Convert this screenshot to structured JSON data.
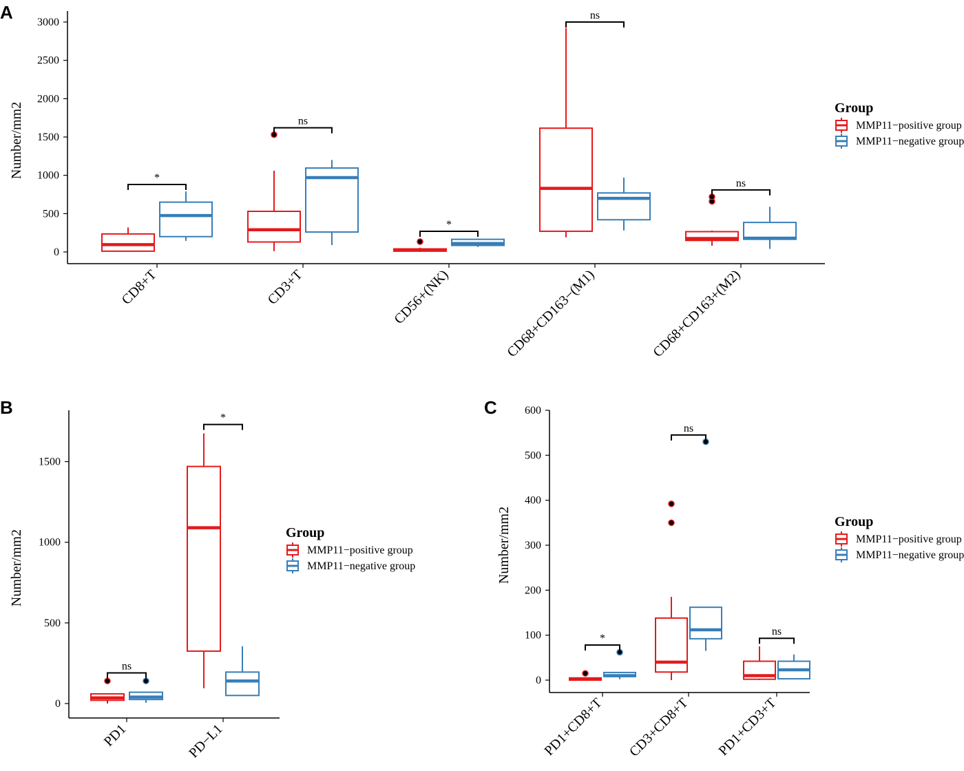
{
  "colors": {
    "positive": "#e41a1c",
    "negative": "#377eb8",
    "axis": "#000000"
  },
  "chart_data": [
    {
      "panel": "A",
      "type": "boxplot",
      "ylabel": "Number/mm2",
      "ylim": [
        0,
        3000
      ],
      "yticks": [
        0,
        500,
        1000,
        1500,
        2000,
        2500,
        3000
      ],
      "categories": [
        "CD8+T",
        "CD3+T",
        "CD56+(NK)",
        "CD68+CD163−(M1)",
        "CD68+CD163+(M2)"
      ],
      "legend": {
        "title": "Group",
        "items": [
          "MMP11−positive group",
          "MMP11−negative group"
        ]
      },
      "series": [
        {
          "name": "MMP11−positive group",
          "boxes": [
            {
              "min": 0,
              "q1": 10,
              "median": 95,
              "q3": 235,
              "max": 320,
              "outliers": []
            },
            {
              "min": 10,
              "q1": 130,
              "median": 290,
              "q3": 530,
              "max": 1060,
              "outliers": [
                1530
              ]
            },
            {
              "min": 0,
              "q1": 10,
              "median": 25,
              "q3": 40,
              "max": 55,
              "outliers": [
                135
              ]
            },
            {
              "min": 190,
              "q1": 270,
              "median": 830,
              "q3": 1615,
              "max": 2920,
              "outliers": []
            },
            {
              "min": 80,
              "q1": 150,
              "median": 175,
              "q3": 265,
              "max": 280,
              "outliers": [
                660,
                720
              ]
            }
          ]
        },
        {
          "name": "MMP11−negative group",
          "boxes": [
            {
              "min": 145,
              "q1": 200,
              "median": 475,
              "q3": 650,
              "max": 790,
              "outliers": []
            },
            {
              "min": 90,
              "q1": 260,
              "median": 970,
              "q3": 1095,
              "max": 1200,
              "outliers": []
            },
            {
              "min": 65,
              "q1": 85,
              "median": 110,
              "q3": 165,
              "max": 175,
              "outliers": []
            },
            {
              "min": 280,
              "q1": 420,
              "median": 700,
              "q3": 770,
              "max": 970,
              "outliers": []
            },
            {
              "min": 40,
              "q1": 165,
              "median": 180,
              "q3": 385,
              "max": 590,
              "outliers": []
            }
          ]
        }
      ],
      "significance": [
        {
          "category": 0,
          "label": "*",
          "y": 880
        },
        {
          "category": 1,
          "label": "ns",
          "y": 1620
        },
        {
          "category": 2,
          "label": "*",
          "y": 270
        },
        {
          "category": 3,
          "label": "ns",
          "y": 3000
        },
        {
          "category": 4,
          "label": "ns",
          "y": 810
        }
      ]
    },
    {
      "panel": "B",
      "type": "boxplot",
      "ylabel": "Number/mm2",
      "ylim": [
        0,
        1750
      ],
      "yticks": [
        0,
        500,
        1000,
        1500
      ],
      "categories": [
        "PD1",
        "PD−L1"
      ],
      "legend": {
        "title": "Group",
        "items": [
          "MMP11−positive group",
          "MMP11−negative group"
        ]
      },
      "series": [
        {
          "name": "MMP11−positive group",
          "boxes": [
            {
              "min": 0,
              "q1": 20,
              "median": 35,
              "q3": 60,
              "max": 60,
              "outliers": [
                140
              ]
            },
            {
              "min": 95,
              "q1": 325,
              "median": 1090,
              "q3": 1470,
              "max": 1675,
              "outliers": []
            }
          ]
        },
        {
          "name": "MMP11−negative group",
          "boxes": [
            {
              "min": 5,
              "q1": 25,
              "median": 40,
              "q3": 70,
              "max": 70,
              "outliers": [
                140
              ]
            },
            {
              "min": 50,
              "q1": 50,
              "median": 140,
              "q3": 195,
              "max": 355,
              "outliers": []
            }
          ]
        }
      ],
      "significance": [
        {
          "category": 0,
          "label": "ns",
          "y": 190
        },
        {
          "category": 1,
          "label": "*",
          "y": 1730
        }
      ]
    },
    {
      "panel": "C",
      "type": "boxplot",
      "ylabel": "Number/mm2",
      "ylim": [
        0,
        600
      ],
      "yticks": [
        0,
        100,
        200,
        300,
        400,
        500,
        600
      ],
      "categories": [
        "PD1+CD8+T",
        "CD3+CD8+T",
        "PD1+CD3+T"
      ],
      "legend": {
        "title": "Group",
        "items": [
          "MMP11−positive group",
          "MMP11−negative group"
        ]
      },
      "series": [
        {
          "name": "MMP11−positive group",
          "boxes": [
            {
              "min": 0,
              "q1": 0,
              "median": 2,
              "q3": 5,
              "max": 5,
              "outliers": [
                15
              ]
            },
            {
              "min": 0,
              "q1": 18,
              "median": 40,
              "q3": 138,
              "max": 185,
              "outliers": [
                350,
                392
              ]
            },
            {
              "min": 0,
              "q1": 2,
              "median": 10,
              "q3": 42,
              "max": 75,
              "outliers": []
            }
          ]
        },
        {
          "name": "MMP11−negative group",
          "boxes": [
            {
              "min": 2,
              "q1": 8,
              "median": 10,
              "q3": 17,
              "max": 17,
              "outliers": [
                62
              ]
            },
            {
              "min": 65,
              "q1": 92,
              "median": 112,
              "q3": 162,
              "max": 162,
              "outliers": [
                530
              ]
            },
            {
              "min": 2,
              "q1": 3,
              "median": 23,
              "q3": 42,
              "max": 57,
              "outliers": []
            }
          ]
        }
      ],
      "significance": [
        {
          "category": 0,
          "label": "*",
          "y": 78
        },
        {
          "category": 1,
          "label": "ns",
          "y": 545
        },
        {
          "category": 2,
          "label": "ns",
          "y": 93
        }
      ]
    }
  ]
}
